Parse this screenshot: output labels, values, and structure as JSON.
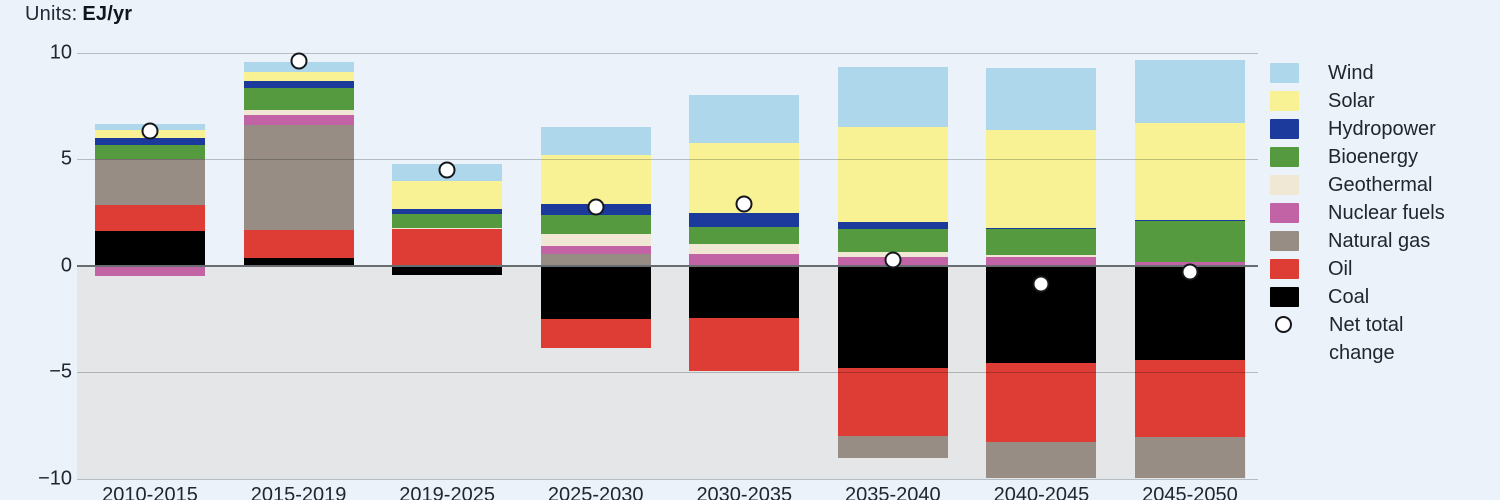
{
  "header": {
    "units_prefix": "Units:",
    "units_value": "EJ/yr"
  },
  "chart_data": {
    "type": "bar",
    "stacked": true,
    "title": "Units: EJ/yr",
    "xlabel": "",
    "ylabel": "EJ/yr",
    "ylim": [
      -10,
      10
    ],
    "yticks": [
      10,
      5,
      0,
      -5,
      -10
    ],
    "ytick_labels": [
      "10",
      "5",
      "0",
      "−5",
      "−10"
    ],
    "grid": true,
    "legend_position": "right",
    "categories": [
      "2010-2015",
      "2015-2019",
      "2019-2025",
      "2025-2030",
      "2030-2035",
      "2035-2040",
      "2040-2045",
      "2045-2050"
    ],
    "series": [
      {
        "name": "Wind",
        "color": "#aed7ec",
        "values": [
          0.3,
          0.45,
          0.8,
          1.3,
          2.25,
          2.8,
          2.9,
          2.95
        ]
      },
      {
        "name": "Solar",
        "color": "#f9f295",
        "values": [
          0.35,
          0.45,
          1.3,
          2.3,
          3.3,
          4.45,
          4.6,
          4.55
        ]
      },
      {
        "name": "Hydropower",
        "color": "#1b3a9c",
        "values": [
          0.35,
          0.3,
          0.25,
          0.55,
          0.65,
          0.35,
          0.05,
          0.05
        ]
      },
      {
        "name": "Bioenergy",
        "color": "#569a40",
        "values": [
          0.65,
          1.05,
          0.65,
          0.85,
          0.8,
          1.05,
          1.2,
          1.95
        ]
      },
      {
        "name": "Geothermal",
        "color": "#f0e8d4",
        "values": [
          0.0,
          0.25,
          0.05,
          0.6,
          0.45,
          0.25,
          0.1,
          0.0
        ]
      },
      {
        "name": "Nuclear fuels",
        "color": "#c163a4",
        "values": [
          -0.5,
          0.45,
          0.0,
          0.35,
          0.55,
          0.4,
          0.4,
          0.15
        ]
      },
      {
        "name": "Natural gas",
        "color": "#978d85",
        "values": [
          2.15,
          4.95,
          0.0,
          0.55,
          0.0,
          -1.05,
          -1.7,
          -1.95
        ]
      },
      {
        "name": "Oil",
        "color": "#dd3d35",
        "values": [
          1.25,
          1.3,
          1.7,
          -1.35,
          -2.5,
          -3.2,
          -3.7,
          -3.6
        ]
      },
      {
        "name": "Coal",
        "color": "#000000",
        "values": [
          1.6,
          0.35,
          -0.45,
          -2.5,
          -2.45,
          -4.8,
          -4.6,
          -4.45
        ]
      }
    ],
    "net_total_change": {
      "label": "Net total change",
      "marker": "open-circle",
      "values": [
        6.3,
        9.6,
        4.5,
        2.75,
        2.9,
        0.25,
        -0.85,
        -0.3
      ]
    },
    "stack_order_positive_from_zero": [
      "Coal",
      "Oil",
      "Natural gas",
      "Nuclear fuels",
      "Geothermal",
      "Bioenergy",
      "Hydropower",
      "Solar",
      "Wind"
    ],
    "stack_order_negative_from_zero": [
      "Nuclear fuels",
      "Coal",
      "Oil",
      "Natural gas"
    ]
  },
  "legend": {
    "items": [
      {
        "label": "Wind",
        "type": "swatch",
        "color": "#aed7ec"
      },
      {
        "label": "Solar",
        "type": "swatch",
        "color": "#f9f295"
      },
      {
        "label": "Hydropower",
        "type": "swatch",
        "color": "#1b3a9c"
      },
      {
        "label": "Bioenergy",
        "type": "swatch",
        "color": "#569a40"
      },
      {
        "label": "Geothermal",
        "type": "swatch",
        "color": "#f0e8d4"
      },
      {
        "label": "Nuclear fuels",
        "type": "swatch",
        "color": "#c163a4"
      },
      {
        "label": "Natural gas",
        "type": "swatch",
        "color": "#978d85"
      },
      {
        "label": "Oil",
        "type": "swatch",
        "color": "#dd3d35"
      },
      {
        "label": "Coal",
        "type": "swatch",
        "color": "#000000"
      },
      {
        "label": "Net total change",
        "type": "circle-marker"
      }
    ]
  },
  "colors": {
    "background": "#ebf2f9",
    "negative_region": "#e4e6e7",
    "grid_line": "#c3c7c9",
    "zero_line": "#686d71",
    "text": "#20262f",
    "marker_fill": "#ffffff",
    "marker_stroke": "#14181d"
  }
}
